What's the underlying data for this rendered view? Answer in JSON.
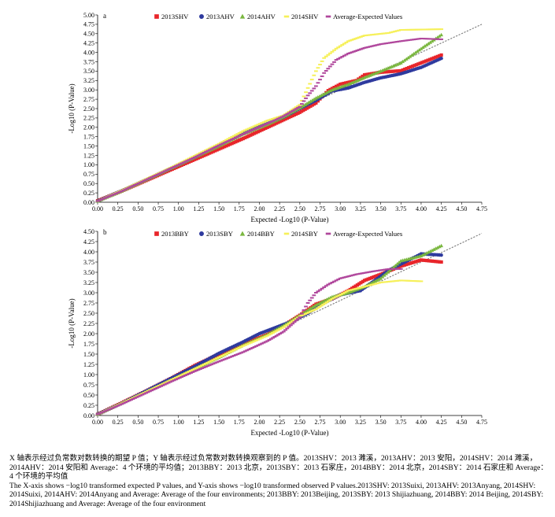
{
  "colors": {
    "2013": "#e8252a",
    "2013b": "#2e3a9e",
    "2014a": "#7ab73f",
    "2014b": "#f6f05a",
    "avg": "#b0479c",
    "expected_line": "#7a7a7a"
  },
  "chart_data": [
    {
      "panel": "a",
      "type": "scatter",
      "title": "",
      "xlabel": "Expected -Log10 (P-Value)",
      "ylabel": "-Log10 (P-Value)",
      "xlim": [
        0,
        4.75
      ],
      "ylim": [
        0,
        5
      ],
      "xticks": [
        "0.00",
        "0.25",
        "0.50",
        "0.75",
        "1.00",
        "1.25",
        "1.50",
        "1.75",
        "2.00",
        "2.25",
        "2.50",
        "2.75",
        "3.00",
        "3.25",
        "3.50",
        "3.75",
        "4.00",
        "4.25",
        "4.50",
        "4.75"
      ],
      "yticks": [
        "0.00",
        "0.25",
        "0.50",
        "0.75",
        "1.00",
        "1.25",
        "1.50",
        "1.75",
        "2.00",
        "2.25",
        "2.50",
        "2.75",
        "3.00",
        "3.25",
        "3.50",
        "3.75",
        "4.00",
        "4.25",
        "4.50",
        "4.75",
        "5.00"
      ],
      "legend_position": "top",
      "expected_line": {
        "x": [
          0,
          4.75
        ],
        "y": [
          0,
          4.75
        ]
      },
      "series": [
        {
          "name": "2013SHV",
          "color_key": "2013",
          "points": [
            [
              0,
              0.04
            ],
            [
              0.3,
              0.3
            ],
            [
              0.6,
              0.58
            ],
            [
              0.9,
              0.86
            ],
            [
              1.2,
              1.14
            ],
            [
              1.5,
              1.42
            ],
            [
              1.8,
              1.7
            ],
            [
              2.1,
              2.0
            ],
            [
              2.3,
              2.2
            ],
            [
              2.5,
              2.4
            ],
            [
              2.7,
              2.65
            ],
            [
              2.85,
              2.98
            ],
            [
              3.0,
              3.15
            ],
            [
              3.2,
              3.25
            ],
            [
              3.3,
              3.4
            ],
            [
              3.5,
              3.47
            ],
            [
              3.75,
              3.51
            ],
            [
              4.25,
              3.93
            ]
          ]
        },
        {
          "name": "2013AHV",
          "color_key": "2013b",
          "points": [
            [
              0,
              0.03
            ],
            [
              0.3,
              0.31
            ],
            [
              0.6,
              0.6
            ],
            [
              0.9,
              0.9
            ],
            [
              1.2,
              1.2
            ],
            [
              1.5,
              1.52
            ],
            [
              1.8,
              1.86
            ],
            [
              2.1,
              2.1
            ],
            [
              2.3,
              2.27
            ],
            [
              2.5,
              2.5
            ],
            [
              2.7,
              2.72
            ],
            [
              2.9,
              2.97
            ],
            [
              3.1,
              3.05
            ],
            [
              3.3,
              3.2
            ],
            [
              3.5,
              3.32
            ],
            [
              3.75,
              3.43
            ],
            [
              4.0,
              3.6
            ],
            [
              4.25,
              3.84
            ]
          ]
        },
        {
          "name": "2014AHV",
          "color_key": "2014a",
          "points": [
            [
              0,
              0.03
            ],
            [
              0.3,
              0.3
            ],
            [
              0.6,
              0.6
            ],
            [
              0.9,
              0.9
            ],
            [
              1.2,
              1.2
            ],
            [
              1.5,
              1.5
            ],
            [
              1.8,
              1.82
            ],
            [
              2.1,
              2.08
            ],
            [
              2.3,
              2.28
            ],
            [
              2.5,
              2.52
            ],
            [
              2.7,
              2.78
            ],
            [
              2.9,
              3.0
            ],
            [
              3.1,
              3.15
            ],
            [
              3.3,
              3.33
            ],
            [
              3.5,
              3.5
            ],
            [
              3.75,
              3.72
            ],
            [
              4.0,
              4.1
            ],
            [
              4.25,
              4.47
            ]
          ]
        },
        {
          "name": "2014SHV",
          "color_key": "2014b",
          "points": [
            [
              0,
              0.03
            ],
            [
              0.3,
              0.32
            ],
            [
              0.6,
              0.62
            ],
            [
              0.9,
              0.92
            ],
            [
              1.2,
              1.24
            ],
            [
              1.5,
              1.56
            ],
            [
              1.8,
              1.9
            ],
            [
              2.1,
              2.18
            ],
            [
              2.3,
              2.32
            ],
            [
              2.5,
              2.6
            ],
            [
              2.6,
              3.05
            ],
            [
              2.7,
              3.5
            ],
            [
              2.8,
              3.85
            ],
            [
              2.95,
              4.1
            ],
            [
              3.1,
              4.3
            ],
            [
              3.3,
              4.45
            ],
            [
              3.6,
              4.52
            ],
            [
              3.75,
              4.6
            ],
            [
              4.25,
              4.62
            ]
          ]
        },
        {
          "name": "Average-Expected Values",
          "color_key": "avg",
          "points": [
            [
              0,
              0.03
            ],
            [
              0.3,
              0.3
            ],
            [
              0.6,
              0.6
            ],
            [
              0.9,
              0.9
            ],
            [
              1.2,
              1.2
            ],
            [
              1.5,
              1.52
            ],
            [
              1.8,
              1.82
            ],
            [
              2.1,
              2.1
            ],
            [
              2.3,
              2.3
            ],
            [
              2.5,
              2.55
            ],
            [
              2.6,
              2.85
            ],
            [
              2.7,
              3.1
            ],
            [
              2.8,
              3.45
            ],
            [
              2.95,
              3.8
            ],
            [
              3.1,
              3.97
            ],
            [
              3.3,
              4.12
            ],
            [
              3.5,
              4.22
            ],
            [
              3.75,
              4.3
            ],
            [
              4.0,
              4.37
            ],
            [
              4.25,
              4.35
            ]
          ]
        }
      ]
    },
    {
      "panel": "b",
      "type": "scatter",
      "title": "",
      "xlabel": "Expected -Log10 (P-Value)",
      "ylabel": "-Log10 (P-Value)",
      "xlim": [
        0,
        4.75
      ],
      "ylim": [
        0,
        4.5
      ],
      "xticks": [
        "0.00",
        "0.25",
        "0.50",
        "0.75",
        "1.00",
        "1.25",
        "1.50",
        "1.75",
        "2.00",
        "2.25",
        "2.50",
        "2.75",
        "3.00",
        "3.25",
        "3.50",
        "3.75",
        "4.00",
        "4.25",
        "4.50",
        "4.75"
      ],
      "yticks": [
        "0.00",
        "0.25",
        "0.50",
        "0.75",
        "1.00",
        "1.25",
        "1.50",
        "1.75",
        "2.00",
        "2.25",
        "2.50",
        "2.75",
        "3.00",
        "3.25",
        "3.50",
        "3.75",
        "4.00",
        "4.25",
        "4.50"
      ],
      "legend_position": "top",
      "expected_line": {
        "x": [
          0,
          4.75
        ],
        "y": [
          0,
          4.45
        ]
      },
      "series": [
        {
          "name": "2013BBY",
          "color_key": "2013",
          "points": [
            [
              0,
              0.03
            ],
            [
              0.3,
              0.31
            ],
            [
              0.6,
              0.6
            ],
            [
              0.9,
              0.9
            ],
            [
              1.2,
              1.22
            ],
            [
              1.5,
              1.5
            ],
            [
              1.8,
              1.75
            ],
            [
              2.1,
              1.98
            ],
            [
              2.3,
              2.2
            ],
            [
              2.5,
              2.45
            ],
            [
              2.7,
              2.72
            ],
            [
              2.9,
              2.85
            ],
            [
              3.1,
              3.05
            ],
            [
              3.3,
              3.3
            ],
            [
              3.5,
              3.45
            ],
            [
              3.75,
              3.65
            ],
            [
              4.0,
              3.8
            ],
            [
              4.25,
              3.75
            ]
          ]
        },
        {
          "name": "2013SBY",
          "color_key": "2013b",
          "points": [
            [
              0,
              0.03
            ],
            [
              0.3,
              0.3
            ],
            [
              0.6,
              0.6
            ],
            [
              0.9,
              0.9
            ],
            [
              1.2,
              1.2
            ],
            [
              1.5,
              1.52
            ],
            [
              1.8,
              1.8
            ],
            [
              2.0,
              2.0
            ],
            [
              2.2,
              2.15
            ],
            [
              2.4,
              2.3
            ],
            [
              2.5,
              2.4
            ],
            [
              2.6,
              2.5
            ],
            [
              2.8,
              2.75
            ],
            [
              3.0,
              2.95
            ],
            [
              3.25,
              3.05
            ],
            [
              3.6,
              3.55
            ],
            [
              4.0,
              3.95
            ],
            [
              4.25,
              3.92
            ]
          ]
        },
        {
          "name": "2014BBY",
          "color_key": "2014a",
          "points": [
            [
              0,
              0.03
            ],
            [
              0.3,
              0.3
            ],
            [
              0.6,
              0.58
            ],
            [
              0.9,
              0.86
            ],
            [
              1.2,
              1.14
            ],
            [
              1.5,
              1.42
            ],
            [
              1.8,
              1.72
            ],
            [
              2.1,
              1.98
            ],
            [
              2.3,
              2.2
            ],
            [
              2.5,
              2.45
            ],
            [
              2.7,
              2.7
            ],
            [
              2.9,
              2.9
            ],
            [
              3.1,
              3.0
            ],
            [
              3.3,
              3.15
            ],
            [
              3.5,
              3.35
            ],
            [
              3.75,
              3.78
            ],
            [
              4.0,
              3.9
            ],
            [
              4.25,
              4.15
            ]
          ]
        },
        {
          "name": "2014SBY",
          "color_key": "2014b",
          "points": [
            [
              0,
              0.03
            ],
            [
              0.3,
              0.3
            ],
            [
              0.6,
              0.58
            ],
            [
              0.9,
              0.86
            ],
            [
              1.2,
              1.14
            ],
            [
              1.5,
              1.42
            ],
            [
              1.8,
              1.7
            ],
            [
              2.1,
              1.95
            ],
            [
              2.3,
              2.16
            ],
            [
              2.5,
              2.42
            ],
            [
              2.7,
              2.6
            ],
            [
              2.9,
              2.85
            ],
            [
              3.1,
              3.05
            ],
            [
              3.3,
              3.15
            ],
            [
              3.5,
              3.25
            ],
            [
              3.75,
              3.3
            ],
            [
              4.0,
              3.28
            ]
          ]
        },
        {
          "name": "Average-Expected Values",
          "color_key": "avg",
          "points": [
            [
              0,
              0.03
            ],
            [
              0.3,
              0.28
            ],
            [
              0.6,
              0.55
            ],
            [
              0.9,
              0.82
            ],
            [
              1.2,
              1.08
            ],
            [
              1.5,
              1.32
            ],
            [
              1.8,
              1.55
            ],
            [
              2.1,
              1.82
            ],
            [
              2.3,
              2.05
            ],
            [
              2.5,
              2.4
            ],
            [
              2.6,
              2.75
            ],
            [
              2.7,
              3.0
            ],
            [
              2.85,
              3.2
            ],
            [
              3.0,
              3.35
            ],
            [
              3.2,
              3.45
            ],
            [
              3.4,
              3.52
            ],
            [
              3.6,
              3.58
            ],
            [
              3.75,
              3.58
            ]
          ]
        }
      ]
    }
  ],
  "caption": {
    "line1": "X 轴表示经过负常数对数转换的期望 P 值；Y 轴表示经过负常数对数转换观察到的 P 值。2013SHV：2013 濉溪，2013AHV：2013 安阳，2014SHV：2014 濉溪，2014AHV：2014 安阳和 Average：4 个环境的平均值；2013BBY：2013 北京，2013SBY：2013 石家庄，2014BBY：2014 北京，2014SBY：2014 石家庄和 Average：4 个环境的平均值",
    "line2": "The X-axis shows −log10 transformed expected P values, and Y-axis shows −log10 transformed observed P values.2013SHV: 2013Suixi, 2013AHV: 2013Anyang, 2014SHV: 2014Suixi, 2014AHV: 2014Anyang and Average: Average of the four environments; 2013BBY: 2013Beijing, 2013SBY: 2013 Shijiazhuang, 2014BBY: 2014 Beijing, 2014SBY: 2014Shijiazhuang and Average: Average of the four environment"
  }
}
